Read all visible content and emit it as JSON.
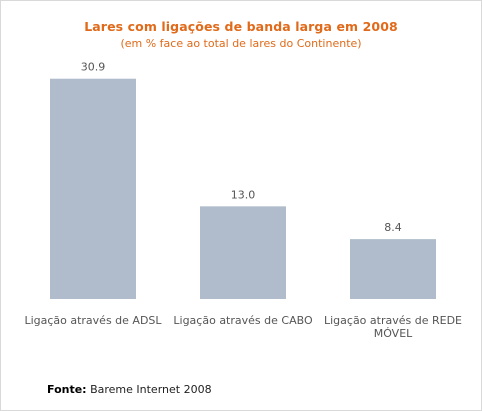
{
  "chart_data": {
    "type": "bar",
    "title": "Lares com ligações de banda larga  em 2008",
    "subtitle": "(em % face ao total de lares do Continente)",
    "categories": [
      [
        "Ligação através de ADSL"
      ],
      [
        "Ligação através de CABO"
      ],
      [
        "Ligação através de REDE",
        "MÓVEL"
      ]
    ],
    "values": [
      30.9,
      13.0,
      8.4
    ],
    "value_labels": [
      "30.9",
      "13.0",
      "8.4"
    ],
    "ylim": [
      0,
      31
    ],
    "grid": false,
    "legend": "none",
    "bar_color": "#b0bccb",
    "label_color": "#555555",
    "title_color": "#e06a1a"
  },
  "source": {
    "label": "Fonte:",
    "text": "Bareme Internet 2008"
  }
}
